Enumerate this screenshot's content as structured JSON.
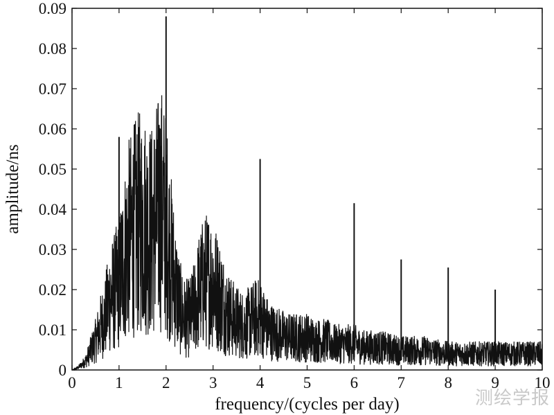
{
  "chart_data": {
    "type": "line",
    "title": "",
    "xlabel": "frequency/(cycles per day)",
    "ylabel": "amplitude/ns",
    "xlim": [
      0,
      10
    ],
    "ylim": [
      0,
      0.09
    ],
    "xticks": [
      "0",
      "1",
      "2",
      "3",
      "4",
      "5",
      "6",
      "7",
      "8",
      "9",
      "10"
    ],
    "yticks": [
      "0",
      "0.01",
      "0.02",
      "0.03",
      "0.04",
      "0.05",
      "0.06",
      "0.07",
      "0.08",
      "0.09"
    ],
    "grid": false,
    "series": [
      {
        "color": "#111111",
        "x": [
          0,
          0.1,
          0.2,
          0.3,
          0.4,
          0.5,
          0.6,
          0.7,
          0.8,
          0.9,
          1.0,
          1.1,
          1.2,
          1.3,
          1.4,
          1.5,
          1.6,
          1.7,
          1.8,
          1.9,
          2.0,
          2.1,
          2.2,
          2.3,
          2.4,
          2.5,
          2.6,
          2.7,
          2.8,
          2.9,
          3.0,
          3.1,
          3.2,
          3.3,
          3.4,
          3.5,
          3.6,
          3.7,
          3.8,
          3.9,
          4.0,
          4.2,
          4.4,
          4.6,
          4.8,
          5.0,
          5.2,
          5.4,
          5.6,
          5.8,
          6.0,
          6.2,
          6.5,
          7.0,
          7.5,
          8.0,
          8.5,
          9.0,
          9.5,
          10.0
        ],
        "y": [
          0.0,
          0.0005,
          0.0015,
          0.003,
          0.006,
          0.009,
          0.013,
          0.016,
          0.022,
          0.024,
          0.027,
          0.034,
          0.04,
          0.043,
          0.045,
          0.046,
          0.044,
          0.043,
          0.047,
          0.05,
          0.045,
          0.035,
          0.026,
          0.019,
          0.016,
          0.016,
          0.019,
          0.024,
          0.027,
          0.028,
          0.027,
          0.024,
          0.021,
          0.018,
          0.016,
          0.015,
          0.014,
          0.014,
          0.015,
          0.016,
          0.016,
          0.012,
          0.011,
          0.01,
          0.01,
          0.01,
          0.009,
          0.009,
          0.008,
          0.008,
          0.008,
          0.007,
          0.007,
          0.006,
          0.006,
          0.005,
          0.005,
          0.005,
          0.005,
          0.005
        ]
      }
    ],
    "peaks": [
      {
        "x": 1.0,
        "y": 0.058
      },
      {
        "x": 1.85,
        "y": 0.061
      },
      {
        "x": 2.0,
        "y": 0.088
      },
      {
        "x": 4.0,
        "y": 0.0525
      },
      {
        "x": 6.0,
        "y": 0.0415
      },
      {
        "x": 7.0,
        "y": 0.0275
      },
      {
        "x": 8.0,
        "y": 0.0255
      },
      {
        "x": 9.0,
        "y": 0.02
      }
    ]
  },
  "watermark": "测绘学报"
}
